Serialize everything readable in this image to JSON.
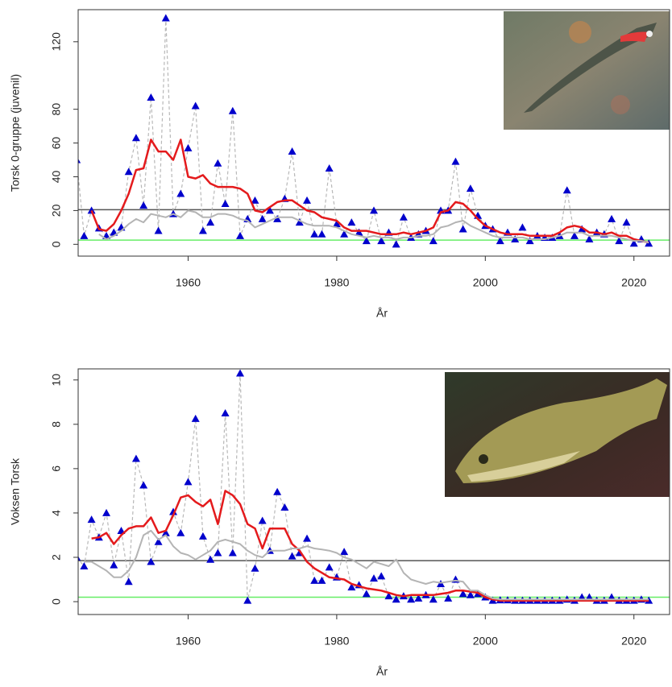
{
  "chart_data": [
    {
      "type": "line",
      "xlabel": "År",
      "ylabel": "Torsk 0-gruppe (juvenil)",
      "x": [
        1945,
        1946,
        1947,
        1948,
        1949,
        1950,
        1951,
        1952,
        1953,
        1954,
        1955,
        1956,
        1957,
        1958,
        1959,
        1960,
        1961,
        1962,
        1963,
        1964,
        1965,
        1966,
        1967,
        1968,
        1969,
        1970,
        1971,
        1972,
        1973,
        1974,
        1975,
        1976,
        1977,
        1978,
        1979,
        1980,
        1981,
        1982,
        1983,
        1984,
        1985,
        1986,
        1987,
        1988,
        1989,
        1990,
        1991,
        1992,
        1993,
        1994,
        1995,
        1996,
        1997,
        1998,
        1999,
        2000,
        2001,
        2002,
        2003,
        2004,
        2005,
        2006,
        2007,
        2008,
        2009,
        2010,
        2011,
        2012,
        2013,
        2014,
        2015,
        2016,
        2017,
        2018,
        2019,
        2020,
        2021,
        2022
      ],
      "series": [
        {
          "color": "#0000cc",
          "marker": "triangle",
          "line": "dashed",
          "line_color": "#b8b8b8",
          "values": [
            50,
            5,
            20,
            9.5,
            5,
            7,
            10,
            43,
            63,
            23,
            87,
            8,
            134,
            18,
            30,
            57,
            82,
            8,
            13,
            48,
            24,
            79,
            5,
            15,
            26,
            15,
            20,
            15,
            27,
            55,
            13,
            26,
            6,
            6,
            45,
            12,
            6,
            13,
            7,
            2,
            20,
            2,
            7,
            0,
            16,
            4,
            6,
            8,
            2,
            20,
            20,
            49,
            9,
            33,
            17,
            11,
            9,
            2,
            7,
            3,
            10,
            2,
            5,
            4,
            4,
            5,
            32,
            5,
            9,
            3,
            7,
            6,
            15,
            2,
            13,
            0.5,
            3,
            0.5
          ]
        },
        {
          "color": "#e41a1c",
          "line": "solid",
          "width": 2.5,
          "values": [
            null,
            null,
            20,
            9,
            8,
            12,
            20,
            30,
            44,
            45,
            62,
            55,
            55,
            50,
            62,
            40,
            39,
            41,
            36,
            34,
            34,
            34,
            33,
            30,
            20,
            19,
            22,
            25,
            26,
            26,
            23,
            20,
            19,
            16,
            15,
            14,
            10,
            8,
            8,
            8,
            7,
            6,
            6,
            6,
            7,
            6,
            7,
            8,
            10,
            19,
            20,
            25,
            24,
            20,
            15,
            11,
            9,
            7,
            6,
            6,
            6,
            5,
            5,
            5,
            5,
            7,
            10,
            11,
            10,
            7,
            7,
            6,
            7,
            5,
            5,
            3,
            2,
            1
          ]
        },
        {
          "color": "#b4b4b4",
          "line": "solid",
          "width": 2,
          "values": [
            null,
            null,
            null,
            6,
            3,
            5,
            8,
            12,
            15,
            13,
            18,
            17,
            16,
            18,
            16,
            20,
            19,
            16,
            16,
            18,
            18,
            17,
            15,
            14,
            10,
            12,
            14,
            16,
            16,
            16,
            14,
            12,
            11,
            11,
            11,
            10,
            8,
            6,
            5,
            4,
            5,
            4,
            4,
            3,
            4,
            4,
            5,
            5,
            6,
            10,
            11,
            13,
            14,
            11,
            9,
            7,
            5,
            4,
            4,
            4,
            4,
            3,
            3,
            3,
            4,
            5,
            7,
            7,
            7,
            5,
            5,
            5,
            5,
            4,
            3,
            2,
            2,
            1
          ]
        }
      ],
      "hlines": [
        {
          "value": 20.5,
          "color": "#555555"
        },
        {
          "value": 2.5,
          "color": "#66ee66"
        }
      ],
      "xlim": [
        1945.2,
        2024.8
      ],
      "xticks": [
        1960,
        1980,
        2000,
        2020
      ],
      "ylim": [
        -7,
        139
      ],
      "yticks": [
        0,
        20,
        40,
        60,
        80,
        120
      ]
    },
    {
      "type": "line",
      "xlabel": "År",
      "ylabel": "Voksen Torsk",
      "x": [
        1945,
        1946,
        1947,
        1948,
        1949,
        1950,
        1951,
        1952,
        1953,
        1954,
        1955,
        1956,
        1957,
        1958,
        1959,
        1960,
        1961,
        1962,
        1963,
        1964,
        1965,
        1966,
        1967,
        1968,
        1969,
        1970,
        1971,
        1972,
        1973,
        1974,
        1975,
        1976,
        1977,
        1978,
        1979,
        1980,
        1981,
        1982,
        1983,
        1984,
        1985,
        1986,
        1987,
        1988,
        1989,
        1990,
        1991,
        1992,
        1993,
        1994,
        1995,
        1996,
        1997,
        1998,
        1999,
        2000,
        2001,
        2002,
        2003,
        2004,
        2005,
        2006,
        2007,
        2008,
        2009,
        2010,
        2011,
        2012,
        2013,
        2014,
        2015,
        2016,
        2017,
        2018,
        2019,
        2020,
        2021,
        2022
      ],
      "series": [
        {
          "color": "#0000cc",
          "marker": "triangle",
          "line": "dashed",
          "line_color": "#b8b8b8",
          "values": [
            2.0,
            1.6,
            3.7,
            2.9,
            4.0,
            1.65,
            3.2,
            0.9,
            6.45,
            5.25,
            1.8,
            2.7,
            3.1,
            4.05,
            3.1,
            5.4,
            8.25,
            2.95,
            1.9,
            2.2,
            8.5,
            2.2,
            10.3,
            0.05,
            1.5,
            3.65,
            2.3,
            4.95,
            4.25,
            2.05,
            2.2,
            2.85,
            0.95,
            0.95,
            1.55,
            1.1,
            2.25,
            0.65,
            0.75,
            0.35,
            1.05,
            1.15,
            0.25,
            0.1,
            0.25,
            0.1,
            0.15,
            0.3,
            0.1,
            0.8,
            0.15,
            1.0,
            0.35,
            0.3,
            0.35,
            0.2,
            0.05,
            0.07,
            0.07,
            0.05,
            0.05,
            0.05,
            0.05,
            0.05,
            0.05,
            0.05,
            0.1,
            0.05,
            0.2,
            0.2,
            0.05,
            0.05,
            0.2,
            0.05,
            0.05,
            0.05,
            0.1,
            0.05
          ]
        },
        {
          "color": "#e41a1c",
          "line": "solid",
          "width": 2.5,
          "values": [
            null,
            null,
            2.85,
            2.9,
            3.1,
            2.6,
            3.0,
            3.3,
            3.4,
            3.4,
            3.8,
            3.1,
            3.2,
            3.9,
            4.7,
            4.8,
            4.5,
            4.3,
            4.6,
            3.5,
            5.0,
            4.8,
            4.4,
            3.5,
            3.3,
            2.4,
            3.3,
            3.3,
            3.3,
            2.6,
            2.3,
            1.8,
            1.5,
            1.3,
            1.1,
            1.05,
            1.0,
            0.8,
            0.7,
            0.6,
            0.55,
            0.5,
            0.4,
            0.3,
            0.25,
            0.3,
            0.3,
            0.3,
            0.3,
            0.35,
            0.4,
            0.5,
            0.5,
            0.45,
            0.4,
            0.2,
            0.1,
            0.05,
            0.05,
            0.05,
            0.05,
            0.05,
            0.05,
            0.05,
            0.05,
            0.05,
            0.05,
            0.05,
            0.05,
            0.05,
            0.05,
            0.05,
            0.05,
            0.05,
            0.05,
            0.05,
            0.05,
            0.05
          ]
        },
        {
          "color": "#b4b4b4",
          "line": "solid",
          "width": 2,
          "values": [
            null,
            1.8,
            1.8,
            1.6,
            1.4,
            1.1,
            1.1,
            1.4,
            2.0,
            3.0,
            3.2,
            2.8,
            3.0,
            2.5,
            2.2,
            2.1,
            1.9,
            2.1,
            2.3,
            2.7,
            2.8,
            2.7,
            2.6,
            2.3,
            2.1,
            2.0,
            2.3,
            2.3,
            2.3,
            2.4,
            2.4,
            2.5,
            2.4,
            2.35,
            2.3,
            2.2,
            2.0,
            1.9,
            1.7,
            1.5,
            1.8,
            1.7,
            1.6,
            1.9,
            1.3,
            1.0,
            0.9,
            0.8,
            0.9,
            0.85,
            0.9,
            0.95,
            0.9,
            0.5,
            0.5,
            0.3,
            0.15,
            0.1,
            0.1,
            0.1,
            0.1,
            0.1,
            0.1,
            0.1,
            0.1,
            0.1,
            0.1,
            0.1,
            0.1,
            0.1,
            0.1,
            0.1,
            0.1,
            0.1,
            0.1,
            0.1,
            0.1,
            0.1
          ]
        }
      ],
      "hlines": [
        {
          "value": 1.85,
          "color": "#555555"
        },
        {
          "value": 0.2,
          "color": "#66ee66"
        }
      ],
      "xlim": [
        1945.2,
        2024.8
      ],
      "xticks": [
        1960,
        1980,
        2000,
        2020
      ],
      "ylim": [
        -0.58,
        10.5
      ],
      "yticks": [
        0,
        2,
        4,
        6,
        8,
        10
      ]
    }
  ]
}
